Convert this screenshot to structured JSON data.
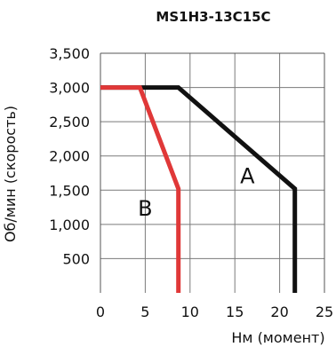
{
  "chart_data": {
    "type": "line",
    "title": "MS1H3-13C15C",
    "xlabel": "Нм (момент)",
    "ylabel": "Об/мин (скорость)",
    "xlim": [
      0,
      25
    ],
    "ylim": [
      0,
      3500
    ],
    "x_ticks": [
      {
        "value": 0,
        "label": "0"
      },
      {
        "value": 5,
        "label": "5"
      },
      {
        "value": 10,
        "label": "10"
      },
      {
        "value": 15,
        "label": "15"
      },
      {
        "value": 20,
        "label": "20"
      },
      {
        "value": 25,
        "label": "25"
      }
    ],
    "y_ticks": [
      {
        "value": 500,
        "label": "500"
      },
      {
        "value": 1000,
        "label": "1,000"
      },
      {
        "value": 1500,
        "label": "1,500"
      },
      {
        "value": 2000,
        "label": "2,000"
      },
      {
        "value": 2500,
        "label": "2,500"
      },
      {
        "value": 3000,
        "label": "3,000"
      },
      {
        "value": 3500,
        "label": "3,500"
      }
    ],
    "grid": true,
    "series": [
      {
        "name": "A",
        "color": "#111111",
        "points": [
          [
            0,
            3000
          ],
          [
            8.7,
            3000
          ],
          [
            21.7,
            1520
          ],
          [
            21.7,
            0
          ]
        ]
      },
      {
        "name": "B",
        "color": "#e03838",
        "points": [
          [
            0,
            3000
          ],
          [
            4.4,
            3000
          ],
          [
            8.7,
            1520
          ],
          [
            8.7,
            0
          ]
        ]
      }
    ],
    "annotations": [
      {
        "text": "A",
        "x": 16.4,
        "y": 1600
      },
      {
        "text": "B",
        "x": 5.0,
        "y": 1130
      }
    ]
  }
}
